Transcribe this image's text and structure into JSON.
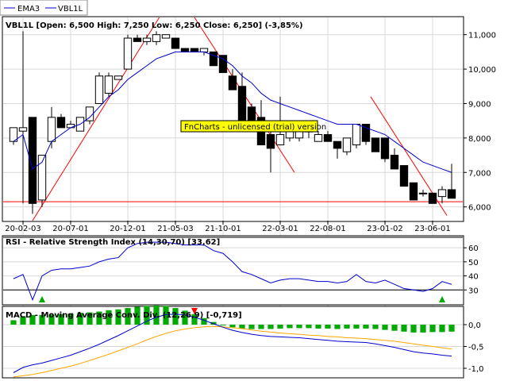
{
  "legend": {
    "items": [
      {
        "name": "EMA3",
        "color": "#0000cc"
      },
      {
        "name": "VBL1L",
        "color": "#0000cc"
      }
    ]
  },
  "watermark": "FnCharts - unlicensed (trial) version",
  "colors": {
    "ema": "#0000cc",
    "trend": "#ff0000",
    "rsi": "#0000cc",
    "macd": "#0000cc",
    "signal": "#ffa500",
    "hist": "#00aa00",
    "arrow_up": "#00aa00",
    "arrow_down": "#ff0000",
    "watermark_bg": "#ffff00"
  },
  "chart_data": [
    {
      "type": "candlestick",
      "title": "VBL1L [Open: 6,500  High: 7,250  Low: 6,250  Close: 6,250]  (-3,85%)",
      "ylim": [
        5.6,
        11.5
      ],
      "y_ticks": [
        "11,000",
        "10,000",
        "9,000",
        "8,000",
        "7,000",
        "6,000"
      ],
      "x_ticks": [
        "20-02-03",
        "20-07-01",
        "20-12-01",
        "21-05-03",
        "21-10-01",
        "22-03-01",
        "22-08-01",
        "23-01-02",
        "23-06-01"
      ],
      "candles": [
        {
          "o": 7.9,
          "h": 8.3,
          "l": 7.8,
          "c": 8.3
        },
        {
          "o": 8.2,
          "h": 11.1,
          "l": 6.1,
          "c": 8.3
        },
        {
          "o": 8.6,
          "h": 8.6,
          "l": 5.8,
          "c": 6.1
        },
        {
          "o": 6.2,
          "h": 7.5,
          "l": 6.0,
          "c": 7.5
        },
        {
          "o": 7.9,
          "h": 8.9,
          "l": 7.7,
          "c": 8.6
        },
        {
          "o": 8.6,
          "h": 8.7,
          "l": 8.3,
          "c": 8.3
        },
        {
          "o": 8.3,
          "h": 8.5,
          "l": 8.3,
          "c": 8.4
        },
        {
          "o": 8.2,
          "h": 8.6,
          "l": 8.2,
          "c": 8.6
        },
        {
          "o": 8.5,
          "h": 8.9,
          "l": 8.4,
          "c": 8.9
        },
        {
          "o": 9.0,
          "h": 9.9,
          "l": 9.0,
          "c": 9.8
        },
        {
          "o": 9.3,
          "h": 9.9,
          "l": 9.2,
          "c": 9.8
        },
        {
          "o": 9.7,
          "h": 9.8,
          "l": 9.7,
          "c": 9.8
        },
        {
          "o": 10.0,
          "h": 11.0,
          "l": 10.0,
          "c": 10.9
        },
        {
          "o": 10.9,
          "h": 11.0,
          "l": 10.8,
          "c": 10.8
        },
        {
          "o": 10.8,
          "h": 11.0,
          "l": 10.7,
          "c": 10.9
        },
        {
          "o": 10.8,
          "h": 11.1,
          "l": 10.7,
          "c": 11.0
        },
        {
          "o": 10.9,
          "h": 11.0,
          "l": 10.9,
          "c": 11.0
        },
        {
          "o": 10.9,
          "h": 10.9,
          "l": 10.6,
          "c": 10.6
        },
        {
          "o": 10.6,
          "h": 10.6,
          "l": 10.5,
          "c": 10.5
        },
        {
          "o": 10.6,
          "h": 10.6,
          "l": 10.5,
          "c": 10.5
        },
        {
          "o": 10.5,
          "h": 10.6,
          "l": 10.4,
          "c": 10.6
        },
        {
          "o": 10.5,
          "h": 10.5,
          "l": 10.1,
          "c": 10.1
        },
        {
          "o": 10.4,
          "h": 10.4,
          "l": 9.9,
          "c": 9.9
        },
        {
          "o": 9.8,
          "h": 10.0,
          "l": 9.4,
          "c": 9.4
        },
        {
          "o": 9.5,
          "h": 9.9,
          "l": 8.4,
          "c": 8.4
        },
        {
          "o": 8.9,
          "h": 9.0,
          "l": 8.4,
          "c": 8.4
        },
        {
          "o": 8.6,
          "h": 9.1,
          "l": 7.8,
          "c": 7.8
        },
        {
          "o": 8.1,
          "h": 8.2,
          "l": 7.0,
          "c": 7.7
        },
        {
          "o": 7.8,
          "h": 9.2,
          "l": 7.8,
          "c": 8.1
        },
        {
          "o": 8.0,
          "h": 8.3,
          "l": 7.9,
          "c": 8.2
        },
        {
          "o": 8.0,
          "h": 8.5,
          "l": 7.9,
          "c": 8.2
        },
        {
          "o": 8.2,
          "h": 8.2,
          "l": 8.0,
          "c": 8.2
        },
        {
          "o": 7.9,
          "h": 8.2,
          "l": 7.9,
          "c": 8.1
        },
        {
          "o": 8.1,
          "h": 8.2,
          "l": 7.9,
          "c": 7.9
        },
        {
          "o": 7.9,
          "h": 7.9,
          "l": 7.4,
          "c": 7.7
        },
        {
          "o": 7.6,
          "h": 8.0,
          "l": 7.5,
          "c": 8.0
        },
        {
          "o": 7.8,
          "h": 8.4,
          "l": 7.7,
          "c": 8.4
        },
        {
          "o": 8.4,
          "h": 8.4,
          "l": 7.8,
          "c": 7.9
        },
        {
          "o": 8.0,
          "h": 8.0,
          "l": 7.6,
          "c": 7.6
        },
        {
          "o": 8.0,
          "h": 8.0,
          "l": 7.3,
          "c": 7.4
        },
        {
          "o": 7.5,
          "h": 7.7,
          "l": 7.1,
          "c": 7.1
        },
        {
          "o": 7.2,
          "h": 7.2,
          "l": 6.6,
          "c": 6.6
        },
        {
          "o": 6.7,
          "h": 6.7,
          "l": 6.2,
          "c": 6.2
        },
        {
          "o": 6.4,
          "h": 6.5,
          "l": 6.3,
          "c": 6.4
        },
        {
          "o": 6.4,
          "h": 6.4,
          "l": 6.1,
          "c": 6.1
        },
        {
          "o": 6.3,
          "h": 6.6,
          "l": 6.1,
          "c": 6.5
        },
        {
          "o": 6.5,
          "h": 7.25,
          "l": 6.25,
          "c": 6.25
        }
      ],
      "ema": [
        7.9,
        8.1,
        7.1,
        7.3,
        7.9,
        8.1,
        8.3,
        8.4,
        8.6,
        8.9,
        9.2,
        9.4,
        9.7,
        9.9,
        10.1,
        10.3,
        10.4,
        10.5,
        10.5,
        10.5,
        10.5,
        10.4,
        10.3,
        10.1,
        9.8,
        9.6,
        9.3,
        9.1,
        9.0,
        8.9,
        8.8,
        8.7,
        8.6,
        8.5,
        8.4,
        8.4,
        8.4,
        8.3,
        8.2,
        8.1,
        7.9,
        7.7,
        7.5,
        7.3,
        7.2,
        7.1,
        7.0
      ],
      "horizontal_line": 6.15,
      "trendlines": [
        {
          "x1": 2,
          "y1": 5.6,
          "x2": 15.3,
          "y2": 11.5
        },
        {
          "x1": 19,
          "y1": 11.5,
          "x2": 29.5,
          "y2": 7.0
        },
        {
          "x1": 37.5,
          "y1": 9.2,
          "x2": 45.5,
          "y2": 5.75
        }
      ]
    },
    {
      "type": "line",
      "title": "RSI - Relative Strength Index (14,30,70) [33,62]",
      "ylim": [
        20,
        68
      ],
      "y_ticks": [
        "60",
        "50",
        "40",
        "30"
      ],
      "levels": [
        30,
        70
      ],
      "series": [
        {
          "values": [
            38,
            41,
            23,
            40,
            44,
            45,
            45,
            46,
            47,
            50,
            52,
            53,
            60,
            63,
            64,
            64,
            64,
            63,
            62,
            62,
            62,
            58,
            56,
            50,
            43,
            41,
            38,
            35,
            37,
            38,
            38,
            37,
            36,
            36,
            35,
            36,
            41,
            36,
            35,
            37,
            34,
            31,
            30,
            29,
            31,
            36,
            34
          ]
        }
      ],
      "arrows_up": [
        3,
        45
      ]
    },
    {
      "type": "line",
      "title": "MACD - Moving Average Conv. Div. (12,26,9) [-0,719]",
      "ylim": [
        -1.2,
        0.4
      ],
      "y_ticks": [
        "0,0",
        "-0,5",
        "-1,0"
      ],
      "series": [
        {
          "values": [
            -1.1,
            -0.98,
            -0.92,
            -0.88,
            -0.82,
            -0.76,
            -0.7,
            -0.62,
            -0.54,
            -0.45,
            -0.35,
            -0.25,
            -0.14,
            -0.03,
            0.08,
            0.17,
            0.23,
            0.24,
            0.22,
            0.17,
            0.1,
            0.02,
            -0.06,
            -0.13,
            -0.18,
            -0.22,
            -0.25,
            -0.27,
            -0.28,
            -0.29,
            -0.3,
            -0.32,
            -0.34,
            -0.36,
            -0.38,
            -0.39,
            -0.4,
            -0.41,
            -0.44,
            -0.48,
            -0.52,
            -0.57,
            -0.62,
            -0.65,
            -0.67,
            -0.7,
            -0.72
          ]
        },
        {
          "values": [
            -1.2,
            -1.17,
            -1.14,
            -1.1,
            -1.05,
            -1.0,
            -0.95,
            -0.89,
            -0.82,
            -0.75,
            -0.68,
            -0.6,
            -0.52,
            -0.44,
            -0.35,
            -0.27,
            -0.2,
            -0.14,
            -0.1,
            -0.07,
            -0.05,
            -0.04,
            -0.05,
            -0.07,
            -0.09,
            -0.12,
            -0.15,
            -0.17,
            -0.19,
            -0.21,
            -0.22,
            -0.24,
            -0.25,
            -0.27,
            -0.28,
            -0.3,
            -0.31,
            -0.32,
            -0.34,
            -0.36,
            -0.38,
            -0.41,
            -0.44,
            -0.47,
            -0.5,
            -0.53,
            -0.56
          ]
        }
      ],
      "histogram": [
        0.1,
        0.19,
        0.22,
        0.22,
        0.23,
        0.24,
        0.25,
        0.27,
        0.28,
        0.3,
        0.33,
        0.35,
        0.38,
        0.41,
        0.43,
        0.44,
        0.43,
        0.38,
        0.32,
        0.24,
        0.15,
        0.06,
        -0.01,
        -0.06,
        -0.09,
        -0.1,
        -0.1,
        -0.1,
        -0.09,
        -0.08,
        -0.08,
        -0.08,
        -0.09,
        -0.09,
        -0.1,
        -0.09,
        -0.09,
        -0.09,
        -0.1,
        -0.12,
        -0.14,
        -0.16,
        -0.18,
        -0.18,
        -0.17,
        -0.17,
        -0.16
      ],
      "arrows_down": [
        19
      ]
    }
  ]
}
